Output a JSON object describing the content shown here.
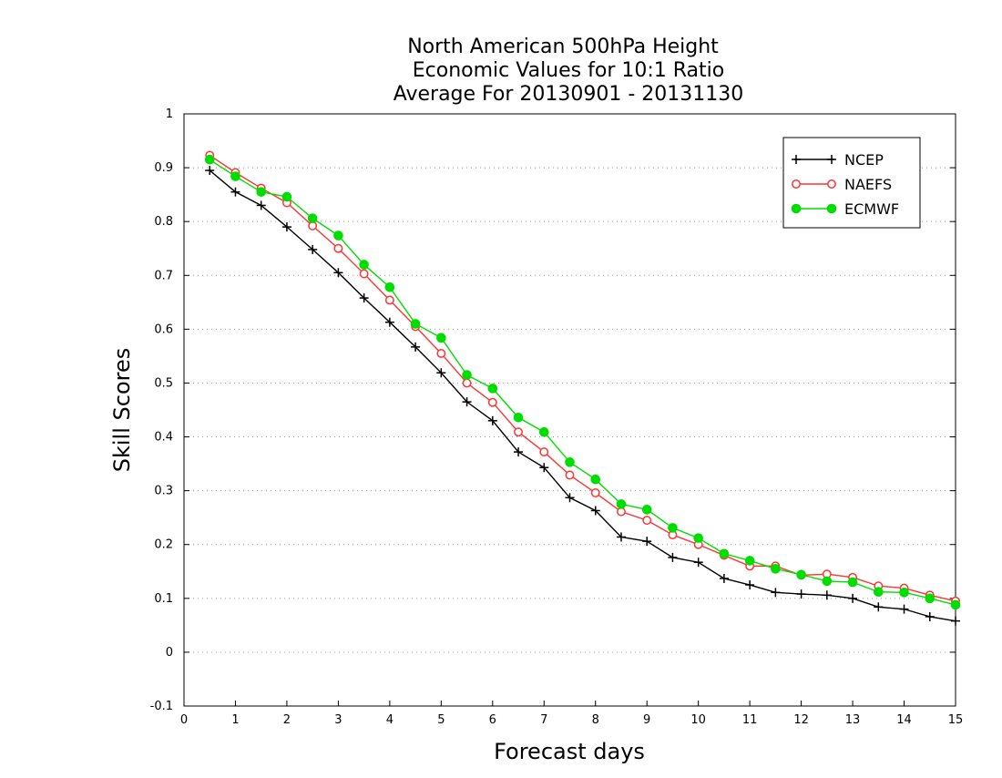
{
  "chart_data": {
    "type": "line",
    "title_lines": [
      "North American 500hPa Height",
      "Economic Values for 10:1 Ratio",
      "Average For 20130901 - 20131130"
    ],
    "xlabel": "Forecast days",
    "ylabel": "Skill Scores",
    "xlim": [
      0,
      15
    ],
    "ylim": [
      -0.1,
      1
    ],
    "xticks": [
      0,
      1,
      2,
      3,
      4,
      5,
      6,
      7,
      8,
      9,
      10,
      11,
      12,
      13,
      14,
      15
    ],
    "xtick_labels": [
      "0",
      "1",
      "2",
      "3",
      "4",
      "5",
      "6",
      "7",
      "8",
      "9",
      "10",
      "11",
      "12",
      "13",
      "14",
      "15"
    ],
    "yticks": [
      -0.1,
      0,
      0.1,
      0.2,
      0.3,
      0.4,
      0.5,
      0.6,
      0.7,
      0.8,
      0.9,
      1
    ],
    "ytick_labels": [
      "-0.1",
      "0",
      "0.1",
      "0.2",
      "0.3",
      "0.4",
      "0.5",
      "0.6",
      "0.7",
      "0.8",
      "0.9",
      "1"
    ],
    "grid": "horizontal dotted",
    "legend_position": "top-right",
    "x": [
      0.5,
      1,
      1.5,
      2,
      2.5,
      3,
      3.5,
      4,
      4.5,
      5,
      5.5,
      6,
      6.5,
      7,
      7.5,
      8,
      8.5,
      9,
      9.5,
      10,
      10.5,
      11,
      11.5,
      12,
      12.5,
      13,
      13.5,
      14,
      14.5,
      15
    ],
    "series": [
      {
        "name": "NCEP",
        "color": "#000000",
        "marker": "plus",
        "values": [
          0.895,
          0.855,
          0.83,
          0.79,
          0.748,
          0.705,
          0.658,
          0.613,
          0.567,
          0.519,
          0.465,
          0.43,
          0.372,
          0.343,
          0.287,
          0.263,
          0.214,
          0.206,
          0.176,
          0.167,
          0.137,
          0.125,
          0.111,
          0.108,
          0.106,
          0.1,
          0.084,
          0.08,
          0.066,
          0.058
        ]
      },
      {
        "name": "NAEFS",
        "color": "#ff3333",
        "marker": "open-circle",
        "values": [
          0.923,
          0.891,
          0.862,
          0.835,
          0.792,
          0.75,
          0.703,
          0.654,
          0.605,
          0.555,
          0.5,
          0.464,
          0.409,
          0.372,
          0.329,
          0.296,
          0.261,
          0.245,
          0.218,
          0.2,
          0.18,
          0.16,
          0.16,
          0.143,
          0.145,
          0.139,
          0.123,
          0.119,
          0.106,
          0.095
        ]
      },
      {
        "name": "ECMWF",
        "color": "#00dd00",
        "marker": "filled-circle",
        "values": [
          0.915,
          0.884,
          0.855,
          0.846,
          0.806,
          0.774,
          0.72,
          0.678,
          0.61,
          0.584,
          0.515,
          0.49,
          0.436,
          0.409,
          0.353,
          0.321,
          0.275,
          0.265,
          0.231,
          0.212,
          0.183,
          0.17,
          0.155,
          0.144,
          0.132,
          0.13,
          0.112,
          0.111,
          0.1,
          0.088
        ]
      }
    ]
  }
}
